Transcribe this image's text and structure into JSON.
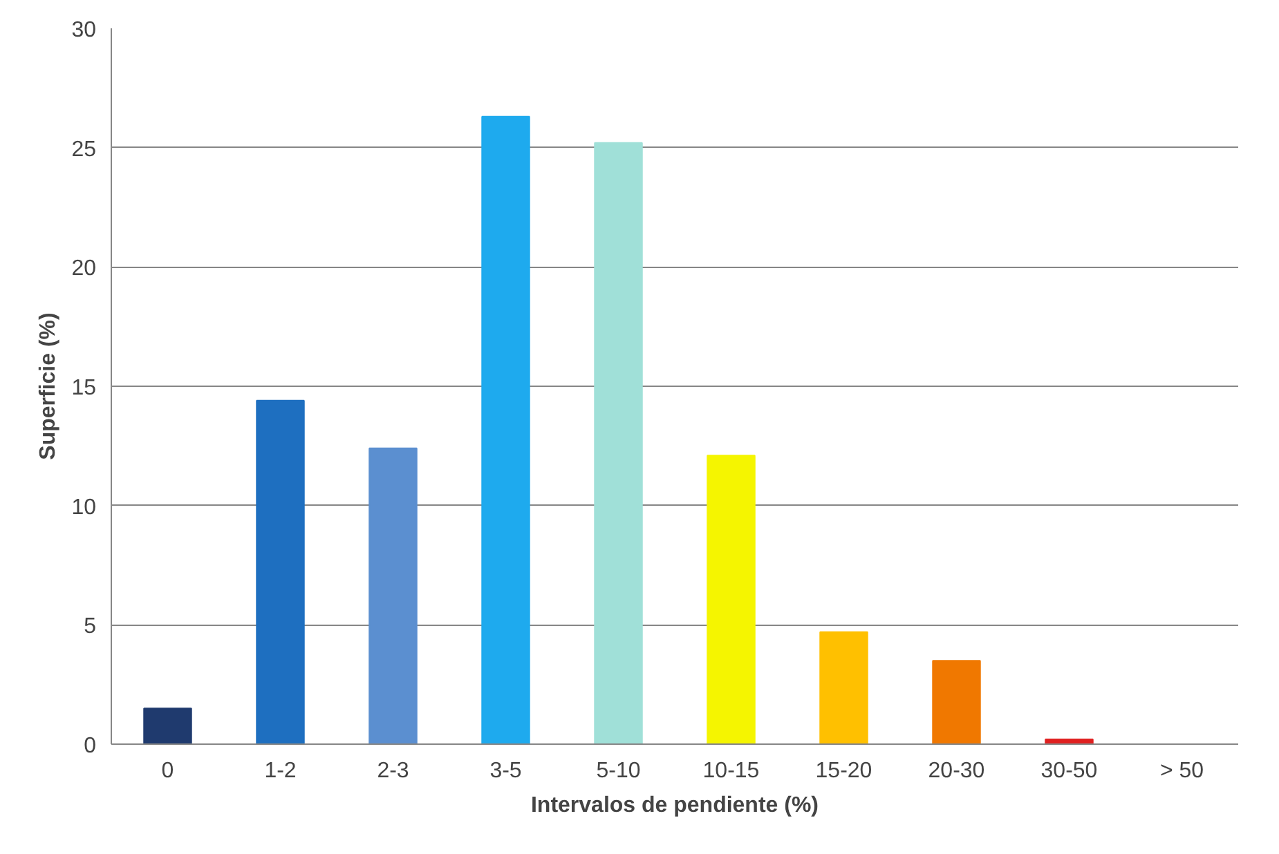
{
  "chart_data": {
    "type": "bar",
    "xlabel": "Intervalos de pendiente (%)",
    "ylabel": "Superficie (%)",
    "categories": [
      "0",
      "1-2",
      "2-3",
      "3-5",
      "5-10",
      "10-15",
      "15-20",
      "20-30",
      "30-50",
      "> 50"
    ],
    "values": [
      1.5,
      14.4,
      12.4,
      26.3,
      25.2,
      12.1,
      4.7,
      3.5,
      0.2,
      0
    ],
    "colors": [
      "#1f3a6e",
      "#1e6fc0",
      "#5b8fd0",
      "#1eaaee",
      "#a0e0d8",
      "#f5f500",
      "#ffc000",
      "#f07800",
      "#e02020",
      "#c00000"
    ],
    "ylim": [
      0,
      30
    ],
    "yticks": [
      0,
      5,
      10,
      15,
      20,
      25,
      30
    ],
    "grid": "y"
  }
}
